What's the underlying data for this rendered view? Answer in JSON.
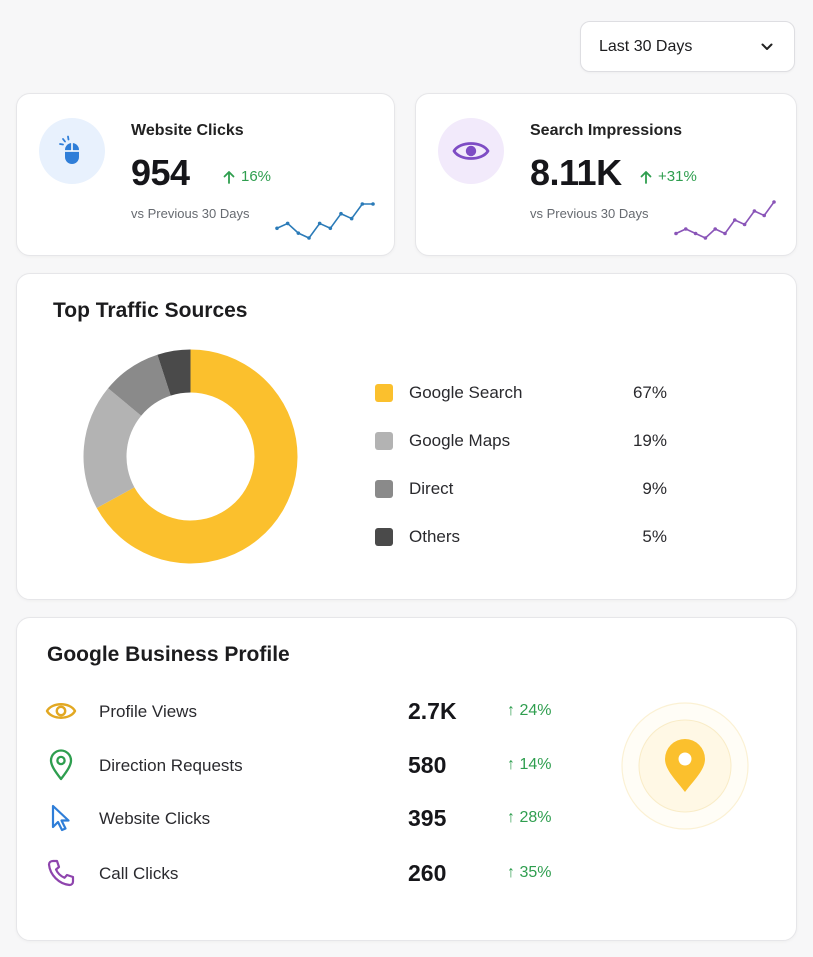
{
  "range_select": {
    "label": "Last 30 Days",
    "icon": "chevron-down-icon"
  },
  "kpis": [
    {
      "title": "Website Clicks",
      "value": "954",
      "delta": "16%",
      "subtitle": "vs Previous 30 Days",
      "icon": "mouse-icon",
      "accent": "#2f7ed8",
      "icon_bg": "#e8f1fd",
      "spark_color": "#2b7bb8",
      "spark": [
        3,
        4,
        2,
        1,
        4,
        3,
        6,
        5,
        8,
        8
      ]
    },
    {
      "title": "Search Impressions",
      "value": "8.11K",
      "delta": "+31%",
      "subtitle": "vs Previous 30 Days",
      "icon": "eye-icon",
      "accent": "#7e4cc4",
      "icon_bg": "#f2eafb",
      "spark_color": "#8a55b8",
      "spark": [
        2,
        3,
        2,
        1,
        3,
        2,
        5,
        4,
        7,
        6,
        9
      ]
    }
  ],
  "traffic": {
    "title": "Top Traffic Sources",
    "chart_data": {
      "type": "pie",
      "categories": [
        "Google Search",
        "Google Maps",
        "Direct",
        "Others"
      ],
      "values": [
        67,
        19,
        9,
        5
      ],
      "labels": [
        "67%",
        "19%",
        "9%",
        "5%"
      ],
      "colors": [
        "#fbc02d",
        "#b3b3b3",
        "#8a8a8a",
        "#4a4a4a"
      ]
    }
  },
  "gbp": {
    "title": "Google Business Profile",
    "rows": [
      {
        "label": "Profile Views",
        "value": "2.7K",
        "delta": "24%",
        "icon": "eye-icon",
        "icon_color": "#e2a822"
      },
      {
        "label": "Direction Requests",
        "value": "580",
        "delta": "14%",
        "icon": "map-pin-icon",
        "icon_color": "#2e9e4f"
      },
      {
        "label": "Website Clicks",
        "value": "395",
        "delta": "28%",
        "icon": "cursor-icon",
        "icon_color": "#2f7ed8"
      },
      {
        "label": "Call Clicks",
        "value": "260",
        "delta": "35%",
        "icon": "phone-icon",
        "icon_color": "#8e44ad"
      }
    ],
    "badge_icon": "location-pin-icon",
    "badge_color": "#fbc02d"
  },
  "colors": {
    "positive": "#2f9e4f"
  }
}
